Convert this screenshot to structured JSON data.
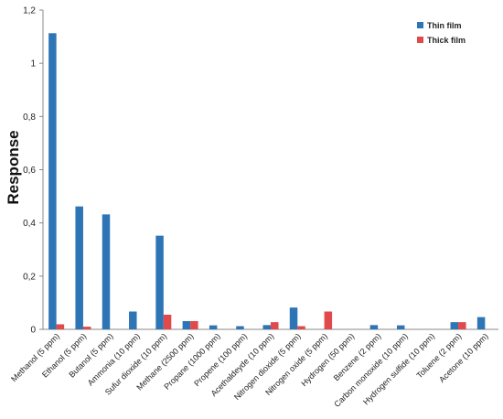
{
  "chart_data": {
    "type": "bar",
    "ylabel": "Response",
    "xlabel": "",
    "ylim": [
      0,
      1.2
    ],
    "yticks": [
      "0",
      "0,2",
      "0,4",
      "0,6",
      "0,8",
      "1",
      "1,2"
    ],
    "legend_position": "top-right",
    "grid": false,
    "categories": [
      "Methanol (5 ppm)",
      "Ethanol (5 ppm)",
      "Butanol (5 ppm)",
      "Ammonia (10 ppm)",
      "Sufur dioxide (10 ppm)",
      "Methane (2500 ppm)",
      "Propane (1000 ppm)",
      "Propene (100 ppm)",
      "Acethaldeyde (10 ppm)",
      "Nitrogen dioxide (5 ppm)",
      "Nitrogen oxide (5 ppm)",
      "Hydrogen (50 ppm)",
      "Benzene (2 ppm)",
      "Carbon monoxide (10 ppm)",
      "Hydrogen sulfide (10 ppm)",
      "Toluene (2 ppm)",
      "Acetone (10 ppm)"
    ],
    "series": [
      {
        "name": "Thin film",
        "color": "#2e75b6",
        "values": [
          1.113,
          0.462,
          0.432,
          0.067,
          0.352,
          0.031,
          0.015,
          0.012,
          0.016,
          0.082,
          0,
          0,
          0.016,
          0.015,
          0,
          0.027,
          0.046
        ]
      },
      {
        "name": "Thick film",
        "color": "#e04a4a",
        "values": [
          0.019,
          0.01,
          0,
          0,
          0.055,
          0.031,
          0,
          0,
          0.027,
          0.012,
          0.067,
          0,
          0,
          0,
          0,
          0.027,
          0
        ]
      }
    ]
  }
}
